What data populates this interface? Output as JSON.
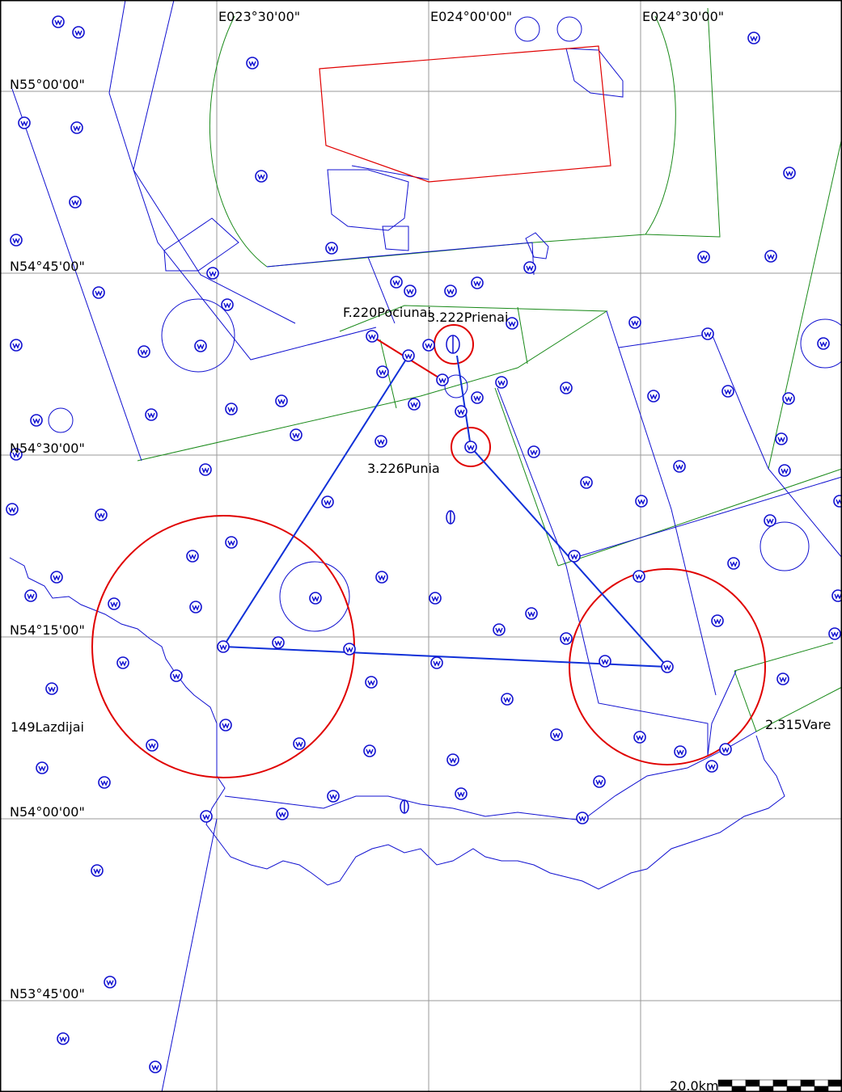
{
  "colors": {
    "airspace": "#1010d0",
    "controlled": "#1a8a1a",
    "restricted": "#e00000",
    "route": "#1030d8",
    "grid": "#9a9a9a"
  },
  "icons": {
    "waypoint": "vor-circle-icon",
    "ndb": "ndb-icon"
  },
  "grid": {
    "longitudes": [
      "E023°30'00\"",
      "E024°00'00\"",
      "E024°30'00\""
    ],
    "latitudes": [
      "N55°00'00\"",
      "N54°45'00\"",
      "N54°30'00\"",
      "N54°15'00\"",
      "N54°00'00\"",
      "N53°45'00\""
    ]
  },
  "points": [
    {
      "label": "F.220Pociunai"
    },
    {
      "label": "3.222Prienai"
    },
    {
      "label": "3.226Punia"
    },
    {
      "label": "149Lazdijai"
    },
    {
      "label": "2.315Vare"
    }
  ],
  "scale": {
    "label": "20.0km"
  }
}
